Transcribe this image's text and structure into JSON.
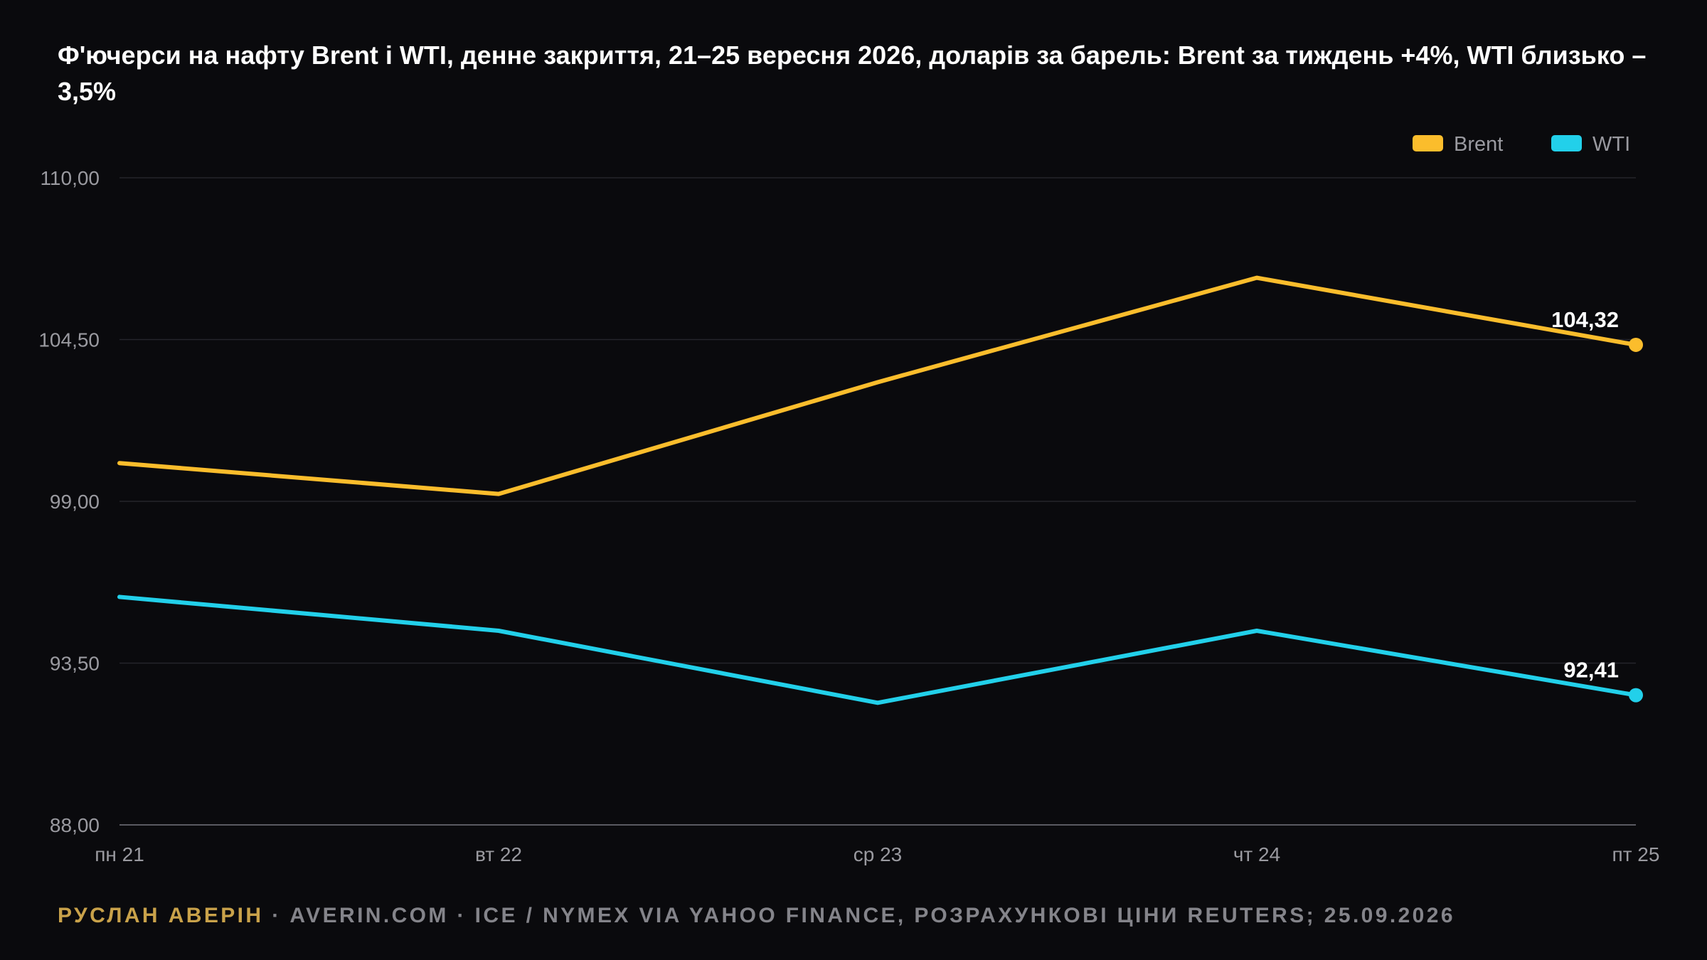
{
  "title": "Ф'ючерси на нафту Brent і WTI, денне закриття, 21–25 вересня 2026, доларів за барель: Brent за тиждень +4%, WTI близько –3,5%",
  "footer": {
    "author": "РУСЛАН АВЕРІН",
    "separator": " · ",
    "site": "AVERIN.COM",
    "source": "ICE / NYMEX VIA YAHOO FINANCE, РОЗРАХУНКОВІ ЦІНИ REUTERS; 25.09.2026"
  },
  "colors": {
    "background": "#0a0a0d",
    "brent": "#fbbd2c",
    "wti": "#22d0ea",
    "grid": "#25252b",
    "axis_text": "#9a9aa0"
  },
  "chart_data": {
    "type": "line",
    "title": "Ф'ючерси на нафту Brent і WTI, денне закриття, 21–25 вересня 2026, доларів за барель: Brent за тиждень +4%, WTI близько –3,5%",
    "xlabel": "",
    "ylabel": "",
    "categories": [
      "пн 21",
      "вт 22",
      "ср 23",
      "чт 24",
      "пт 25"
    ],
    "yticks": [
      88,
      93.5,
      99,
      104.5,
      110
    ],
    "ytick_labels": [
      "88,00",
      "93,50",
      "99,00",
      "104,50",
      "110,00"
    ],
    "ylim": [
      88,
      110
    ],
    "grid": true,
    "legend_position": "top-right",
    "series": [
      {
        "name": "Brent",
        "color": "#fbbd2c",
        "values": [
          100.3,
          99.25,
          103.05,
          106.6,
          104.32
        ],
        "end_label": "104,32"
      },
      {
        "name": "WTI",
        "color": "#22d0ea",
        "values": [
          95.75,
          94.6,
          92.15,
          94.6,
          92.41
        ],
        "end_label": "92,41"
      }
    ]
  }
}
